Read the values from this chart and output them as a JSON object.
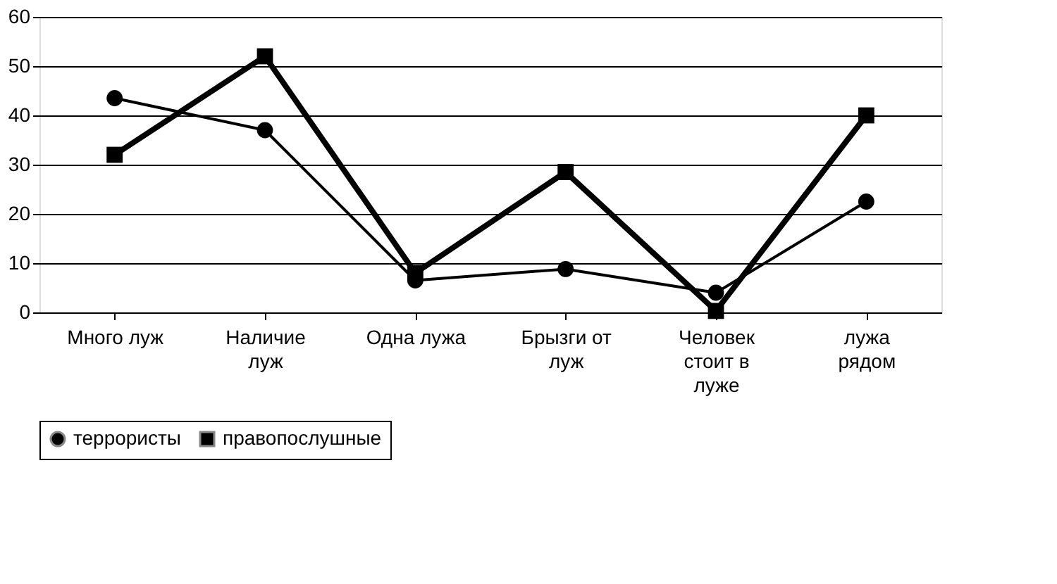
{
  "chart_data": {
    "type": "line",
    "categories": [
      "Много луж",
      "Наличие луж",
      "Одна лужа",
      "Брызги от луж",
      "Человек стоит в луже",
      "лужа рядом"
    ],
    "series": [
      {
        "name": "террористы",
        "color": "#000000",
        "marker": "circle",
        "values": [
          43.5,
          37,
          6.5,
          8.8,
          4,
          22.5
        ]
      },
      {
        "name": "правопослушные",
        "color": "#000000",
        "marker": "square",
        "values": [
          32,
          52,
          8,
          28.5,
          0.3,
          40
        ]
      }
    ],
    "ylim": [
      0,
      60
    ],
    "yticks": [
      0,
      10,
      20,
      30,
      40,
      50,
      60
    ],
    "grid": "y",
    "legend": "bottom",
    "line_style": "solid"
  }
}
